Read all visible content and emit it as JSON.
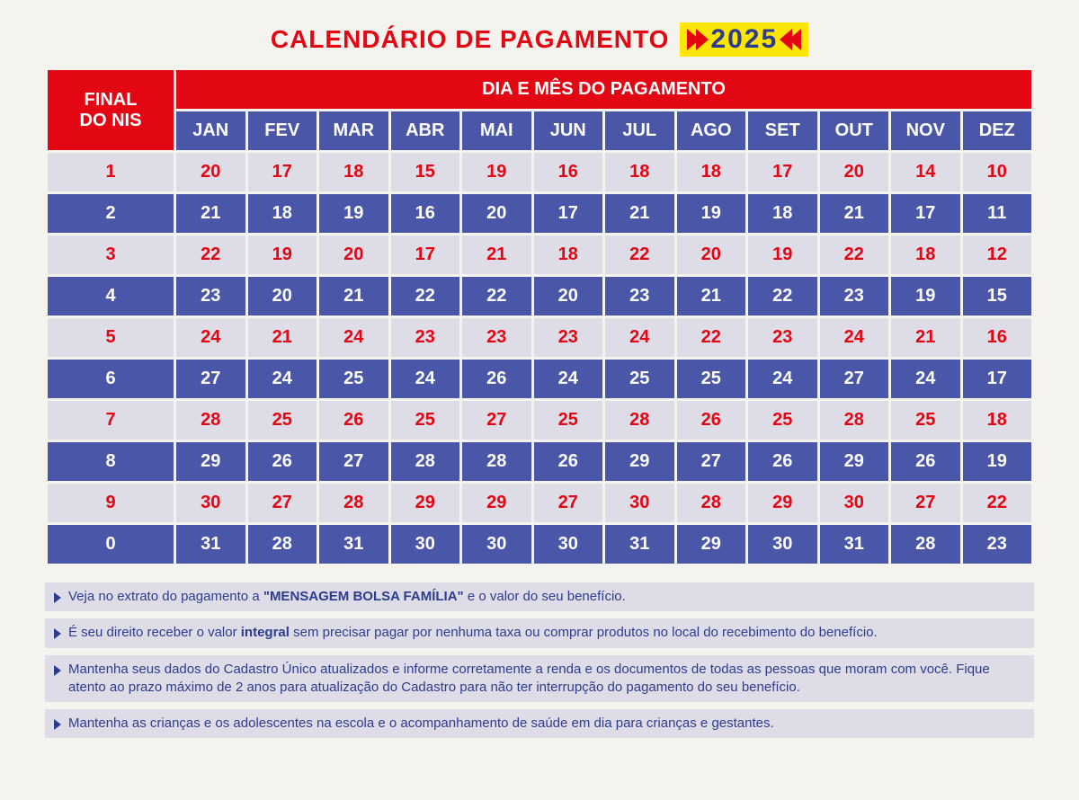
{
  "title": "CALENDÁRIO DE PAGAMENTO",
  "year": "2025",
  "header_left_line1": "FINAL",
  "header_left_line2": "DO NIS",
  "header_right": "DIA E MÊS DO PAGAMENTO",
  "months": [
    "JAN",
    "FEV",
    "MAR",
    "ABR",
    "MAI",
    "JUN",
    "JUL",
    "AGO",
    "SET",
    "OUT",
    "NOV",
    "DEZ"
  ],
  "rows": [
    {
      "nis": "1",
      "vals": [
        "20",
        "17",
        "18",
        "15",
        "19",
        "16",
        "18",
        "18",
        "17",
        "20",
        "14",
        "10"
      ]
    },
    {
      "nis": "2",
      "vals": [
        "21",
        "18",
        "19",
        "16",
        "20",
        "17",
        "21",
        "19",
        "18",
        "21",
        "17",
        "11"
      ]
    },
    {
      "nis": "3",
      "vals": [
        "22",
        "19",
        "20",
        "17",
        "21",
        "18",
        "22",
        "20",
        "19",
        "22",
        "18",
        "12"
      ]
    },
    {
      "nis": "4",
      "vals": [
        "23",
        "20",
        "21",
        "22",
        "22",
        "20",
        "23",
        "21",
        "22",
        "23",
        "19",
        "15"
      ]
    },
    {
      "nis": "5",
      "vals": [
        "24",
        "21",
        "24",
        "23",
        "23",
        "23",
        "24",
        "22",
        "23",
        "24",
        "21",
        "16"
      ]
    },
    {
      "nis": "6",
      "vals": [
        "27",
        "24",
        "25",
        "24",
        "26",
        "24",
        "25",
        "25",
        "24",
        "27",
        "24",
        "17"
      ]
    },
    {
      "nis": "7",
      "vals": [
        "28",
        "25",
        "26",
        "25",
        "27",
        "25",
        "28",
        "26",
        "25",
        "28",
        "25",
        "18"
      ]
    },
    {
      "nis": "8",
      "vals": [
        "29",
        "26",
        "27",
        "28",
        "28",
        "26",
        "29",
        "27",
        "26",
        "29",
        "26",
        "19"
      ]
    },
    {
      "nis": "9",
      "vals": [
        "30",
        "27",
        "28",
        "29",
        "29",
        "27",
        "30",
        "28",
        "29",
        "30",
        "27",
        "22"
      ]
    },
    {
      "nis": "0",
      "vals": [
        "31",
        "28",
        "31",
        "30",
        "30",
        "30",
        "31",
        "29",
        "30",
        "31",
        "28",
        "23"
      ]
    }
  ],
  "colors": {
    "red": "#e30613",
    "blue": "#4a57a8",
    "darkblue_text": "#2e3c8f",
    "light_row": "#dedce6",
    "yellow": "#ffe600",
    "page_bg": "#f5f3ee"
  },
  "notes": [
    {
      "html": "Veja no extrato do pagamento a <b>\"MENSAGEM BOLSA FAMÍLIA\"</b> e o valor do seu benefício."
    },
    {
      "html": "É seu direito receber o valor <b>integral</b> sem precisar pagar por nenhuma taxa ou comprar produtos no local do recebimento do benefício."
    },
    {
      "html": "Mantenha seus dados do Cadastro Único atualizados e informe corretamente a renda e os documentos de todas as pessoas que moram com você. Fique atento ao prazo máximo de 2 anos para atualização do Cadastro para não ter interrupção do pagamento do seu benefício."
    },
    {
      "html": "Mantenha as crianças e os adolescentes na escola e o acompanhamento de saúde em dia para crianças e gestantes."
    }
  ],
  "table_style": {
    "type": "table",
    "cell_spacing": 3,
    "header_bg": "#e30613",
    "header_fg": "#ffffff",
    "month_bg": "#4a57a8",
    "month_fg": "#ffffff",
    "row_light_bg": "#dedce6",
    "row_light_fg": "#e30613",
    "row_dark_bg": "#4a57a8",
    "row_dark_fg": "#ffffff",
    "cell_fontsize": 20,
    "header_fontsize": 22,
    "month_fontsize": 18
  }
}
